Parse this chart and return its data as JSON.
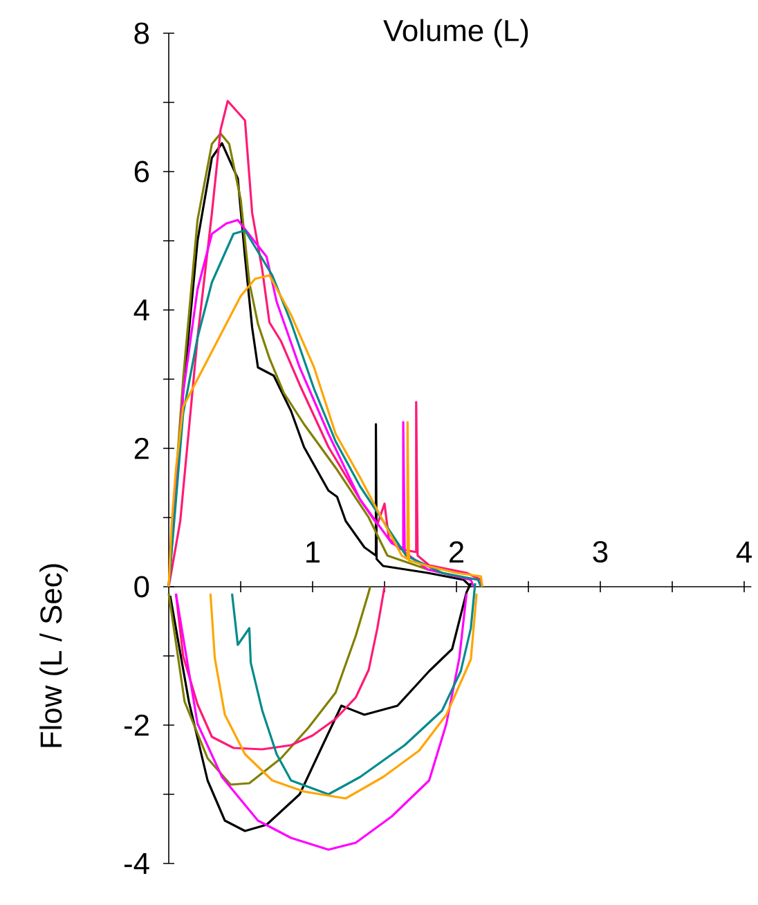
{
  "chart_data": {
    "type": "line",
    "xlabel": "Volume (L)",
    "ylabel": "Flow (L / Sec)",
    "marker": "none",
    "line_style": "solid",
    "xlim": [
      0,
      4.05
    ],
    "ylim": [
      -4,
      8
    ],
    "xticks": [
      {
        "value": 0.5,
        "label": null
      },
      1,
      {
        "value": 1.5,
        "label": null
      },
      2,
      {
        "value": 2.5,
        "label": null
      },
      3,
      {
        "value": 3.5,
        "label": null
      },
      4
    ],
    "yticks": [
      -4,
      {
        "value": -3,
        "label": null
      },
      -2,
      {
        "value": -1,
        "label": null
      },
      0,
      {
        "value": 1,
        "label": null
      },
      2,
      {
        "value": 3,
        "label": null
      },
      4,
      {
        "value": 5,
        "label": null
      },
      6,
      {
        "value": 7,
        "label": null
      },
      8
    ],
    "series": [
      {
        "color": "#000000",
        "x": [
          0,
          0.02,
          0.1,
          0.2,
          0.3,
          0.37,
          0.48,
          0.53,
          0.58,
          0.62,
          0.73,
          0.85,
          0.94,
          1.11,
          1.17,
          1.23,
          1.36,
          1.44,
          1.44,
          1.445,
          1.49,
          1.8,
          2.05,
          2.1
        ],
        "values": [
          0,
          0.6,
          2.8,
          5.0,
          6.2,
          6.41,
          5.9,
          4.77,
          3.74,
          3.17,
          3.05,
          2.54,
          2.02,
          1.39,
          1.3,
          0.95,
          0.57,
          0.45,
          2.35,
          0.4,
          0.3,
          0.2,
          0.1,
          0
        ]
      },
      {
        "color": "#808000",
        "x": [
          0,
          0.03,
          0.1,
          0.2,
          0.3,
          0.36,
          0.42,
          0.5,
          0.56,
          0.62,
          0.7,
          0.8,
          0.94,
          1.16,
          1.39,
          1.52,
          1.8,
          2.1
        ],
        "values": [
          0,
          1,
          3,
          5.3,
          6.4,
          6.55,
          6.4,
          5.6,
          4.4,
          3.8,
          3.3,
          2.8,
          2.35,
          1.72,
          1.0,
          0.45,
          0.25,
          0.1
        ]
      },
      {
        "color": "#ff1a75",
        "x": [
          0,
          0.08,
          0.2,
          0.3,
          0.36,
          0.41,
          0.53,
          0.58,
          0.65,
          0.7,
          0.78,
          0.91,
          1.11,
          1.33,
          1.45,
          1.5,
          1.53,
          1.6,
          1.72,
          1.72,
          1.73,
          1.81,
          2.07,
          2.17,
          2.17
        ],
        "values": [
          0,
          0.95,
          3.6,
          5.4,
          6.6,
          7.02,
          6.74,
          5.4,
          4.58,
          3.82,
          3.55,
          2.92,
          2.02,
          1.26,
          0.9,
          1.2,
          0.7,
          0.55,
          0.5,
          2.67,
          0.45,
          0.31,
          0.2,
          0.1,
          0
        ]
      },
      {
        "color": "#ff00ff",
        "x": [
          0,
          0.1,
          0.2,
          0.3,
          0.4,
          0.48,
          0.68,
          0.75,
          0.91,
          1.11,
          1.33,
          1.55,
          1.63,
          1.63,
          1.64,
          1.8,
          2.1,
          2.12
        ],
        "values": [
          0,
          2.8,
          4.3,
          5.1,
          5.25,
          5.3,
          4.77,
          4.12,
          3.17,
          2.21,
          1.26,
          0.63,
          0.55,
          2.38,
          0.5,
          0.25,
          0.1,
          0
        ]
      },
      {
        "color": "#008b8b",
        "x": [
          0,
          0.1,
          0.2,
          0.3,
          0.45,
          0.53,
          0.72,
          0.85,
          1.01,
          1.16,
          1.33,
          1.49,
          1.65,
          1.9,
          2.15,
          2.17
        ],
        "values": [
          0,
          2.5,
          3.6,
          4.4,
          5.1,
          5.15,
          4.5,
          3.82,
          2.86,
          2.1,
          1.45,
          0.95,
          0.45,
          0.2,
          0.1,
          0
        ]
      },
      {
        "color": "#ffa500",
        "x": [
          0,
          0.02,
          0.05,
          0.1,
          0.2,
          0.3,
          0.4,
          0.5,
          0.6,
          0.7,
          0.85,
          1.01,
          1.16,
          1.33,
          1.49,
          1.62,
          1.66,
          1.66,
          1.67,
          1.8,
          2.0,
          2.17,
          2.18
        ],
        "values": [
          0,
          0.9,
          1.7,
          2.6,
          3.0,
          3.4,
          3.8,
          4.2,
          4.45,
          4.5,
          3.93,
          3.17,
          2.21,
          1.58,
          0.95,
          0.45,
          0.4,
          2.38,
          0.38,
          0.3,
          0.2,
          0.15,
          0
        ]
      },
      {
        "color": "#000000",
        "x": [
          0.01,
          0.14,
          0.27,
          0.39,
          0.53,
          0.68,
          0.91,
          1.07,
          1.2,
          1.36,
          1.59,
          1.81,
          1.97,
          2.07,
          2.1
        ],
        "values": [
          -0.13,
          -1.66,
          -2.8,
          -3.38,
          -3.53,
          -3.44,
          -3.0,
          -2.29,
          -1.72,
          -1.85,
          -1.72,
          -1.22,
          -0.9,
          -0.08,
          0.05
        ]
      },
      {
        "color": "#808000",
        "x": [
          0.0,
          0.11,
          0.27,
          0.43,
          0.56,
          0.78,
          0.97,
          1.16,
          1.3,
          1.39,
          1.4
        ],
        "values": [
          -0.1,
          -1.66,
          -2.48,
          -2.86,
          -2.84,
          -2.48,
          -2.04,
          -1.53,
          -0.71,
          -0.08,
          0
        ]
      },
      {
        "color": "#ff1a75",
        "x": [
          0.05,
          0.1,
          0.2,
          0.3,
          0.45,
          0.65,
          0.85,
          1.0,
          1.16,
          1.3,
          1.39,
          1.45,
          1.5
        ],
        "values": [
          -0.1,
          -1.0,
          -1.7,
          -2.17,
          -2.33,
          -2.35,
          -2.29,
          -2.15,
          -1.91,
          -1.6,
          -1.2,
          -0.6,
          0
        ]
      },
      {
        "color": "#ff00ff",
        "x": [
          0.05,
          0.2,
          0.37,
          0.62,
          0.85,
          1.11,
          1.3,
          1.55,
          1.81,
          1.93,
          2.02,
          2.07
        ],
        "values": [
          -0.1,
          -1.98,
          -2.75,
          -3.38,
          -3.63,
          -3.8,
          -3.7,
          -3.32,
          -2.8,
          -1.98,
          -1.03,
          -0.1
        ]
      },
      {
        "color": "#008b8b",
        "x": [
          0.44,
          0.48,
          0.56,
          0.57,
          0.65,
          0.75,
          0.85,
          1.11,
          1.33,
          1.64,
          1.9,
          2.03,
          2.1,
          2.13
        ],
        "values": [
          -0.1,
          -0.84,
          -0.6,
          -1.1,
          -1.79,
          -2.42,
          -2.8,
          -3.0,
          -2.75,
          -2.29,
          -1.79,
          -1.22,
          -0.6,
          0.05
        ]
      },
      {
        "color": "#ffa500",
        "x": [
          0.29,
          0.32,
          0.39,
          0.53,
          0.72,
          0.94,
          1.23,
          1.49,
          1.74,
          1.93,
          2.1,
          2.14
        ],
        "values": [
          -0.1,
          -1.03,
          -1.85,
          -2.42,
          -2.8,
          -2.96,
          -3.06,
          -2.75,
          -2.37,
          -1.85,
          -1.05,
          -0.1
        ]
      }
    ]
  }
}
